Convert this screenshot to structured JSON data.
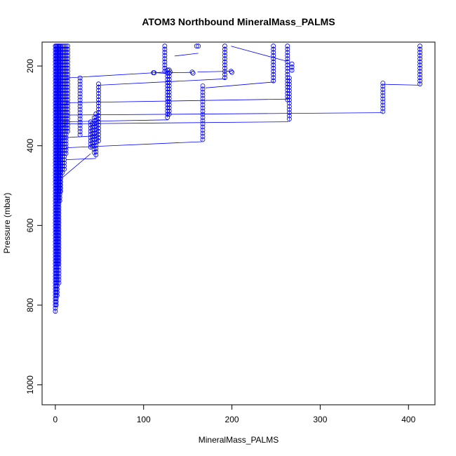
{
  "chart_data": {
    "type": "scatter",
    "title": "ATOM3 Northbound MineralMass_PALMS",
    "xlabel": "MineralMass_PALMS",
    "ylabel": "Pressure (mbar)",
    "xlim": [
      -15,
      430
    ],
    "ylim": [
      1050,
      140
    ],
    "y_reversed": true,
    "x_ticks": [
      0,
      100,
      200,
      300,
      400
    ],
    "y_ticks": [
      200,
      400,
      600,
      800,
      1000
    ],
    "x_tick_labels": [
      "0",
      "100",
      "200",
      "300",
      "400"
    ],
    "y_tick_labels": [
      "200",
      "400",
      "600",
      "800",
      "1000"
    ],
    "marker": "open-circle",
    "color": "#0000ff",
    "grid": false,
    "legend": "none",
    "columns": [
      {
        "x": 0,
        "p_top": 150,
        "p_bottom": 820
      },
      {
        "x": 1,
        "p_top": 150,
        "p_bottom": 805
      },
      {
        "x": 2,
        "p_top": 150,
        "p_bottom": 780
      },
      {
        "x": 3,
        "p_top": 150,
        "p_bottom": 700
      },
      {
        "x": 4,
        "p_top": 150,
        "p_bottom": 750
      },
      {
        "x": 5,
        "p_top": 150,
        "p_bottom": 540
      },
      {
        "x": 6,
        "p_top": 150,
        "p_bottom": 520
      },
      {
        "x": 8,
        "p_top": 150,
        "p_bottom": 470
      },
      {
        "x": 10,
        "p_top": 150,
        "p_bottom": 460
      },
      {
        "x": 12,
        "p_top": 150,
        "p_bottom": 420
      },
      {
        "x": 14,
        "p_top": 150,
        "p_bottom": 370
      },
      {
        "x": 28,
        "p_top": 230,
        "p_bottom": 375
      },
      {
        "x": 40,
        "p_top": 340,
        "p_bottom": 410
      },
      {
        "x": 42,
        "p_top": 345,
        "p_bottom": 405
      },
      {
        "x": 44,
        "p_top": 330,
        "p_bottom": 420
      },
      {
        "x": 46,
        "p_top": 320,
        "p_bottom": 430
      },
      {
        "x": 49,
        "p_top": 245,
        "p_bottom": 395
      },
      {
        "x": 124,
        "p_top": 150,
        "p_bottom": 220
      },
      {
        "x": 127,
        "p_top": 210,
        "p_bottom": 330
      },
      {
        "x": 129,
        "p_top": 210,
        "p_bottom": 325
      },
      {
        "x": 167,
        "p_top": 250,
        "p_bottom": 390
      },
      {
        "x": 192,
        "p_top": 150,
        "p_bottom": 235
      },
      {
        "x": 247,
        "p_top": 150,
        "p_bottom": 240
      },
      {
        "x": 263,
        "p_top": 150,
        "p_bottom": 285
      },
      {
        "x": 265,
        "p_top": 230,
        "p_bottom": 340
      },
      {
        "x": 268,
        "p_top": 195,
        "p_bottom": 215
      },
      {
        "x": 371,
        "p_top": 243,
        "p_bottom": 320
      },
      {
        "x": 413,
        "p_top": 150,
        "p_bottom": 248
      }
    ],
    "isolated_points": [
      {
        "x": 111,
        "y": 217
      },
      {
        "x": 112,
        "y": 217
      },
      {
        "x": 130,
        "y": 215
      },
      {
        "x": 155,
        "y": 215
      },
      {
        "x": 156,
        "y": 218
      },
      {
        "x": 160,
        "y": 150
      },
      {
        "x": 162,
        "y": 150
      },
      {
        "x": 199,
        "y": 213
      },
      {
        "x": 200,
        "y": 216
      }
    ],
    "connecting_segments": [
      [
        [
          13,
          230
        ],
        [
          126,
          215
        ]
      ],
      [
        [
          50,
          248
        ],
        [
          193,
          232
        ]
      ],
      [
        [
          14,
          292
        ],
        [
          265,
          283
        ]
      ],
      [
        [
          14,
          323
        ],
        [
          370,
          317
        ]
      ],
      [
        [
          15,
          345
        ],
        [
          264,
          340
        ]
      ],
      [
        [
          8,
          340
        ],
        [
          128,
          335
        ]
      ],
      [
        [
          9,
          380
        ],
        [
          46,
          375
        ]
      ],
      [
        [
          12,
          405
        ],
        [
          166,
          390
        ]
      ],
      [
        [
          12,
          435
        ],
        [
          46,
          432
        ]
      ],
      [
        [
          8,
          480
        ],
        [
          40,
          420
        ]
      ],
      [
        [
          115,
          217
        ],
        [
          127,
          219
        ]
      ],
      [
        [
          130,
          217
        ],
        [
          155,
          216
        ]
      ],
      [
        [
          135,
          175
        ],
        [
          162,
          168
        ]
      ],
      [
        [
          161,
          215
        ],
        [
          200,
          213
        ]
      ],
      [
        [
          170,
          255
        ],
        [
          248,
          240
        ]
      ],
      [
        [
          199,
          150
        ],
        [
          262,
          188
        ]
      ],
      [
        [
          372,
          246
        ],
        [
          412,
          248
        ]
      ],
      [
        [
          10,
          300
        ],
        [
          14,
          290
        ]
      ],
      [
        [
          9,
          350
        ],
        [
          14,
          345
        ]
      ]
    ]
  }
}
